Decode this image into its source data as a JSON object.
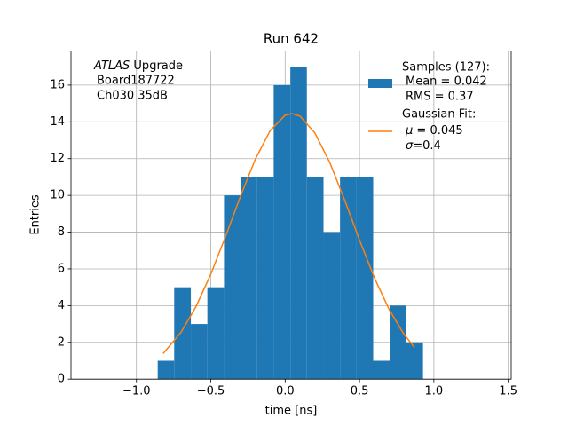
{
  "chart_data": {
    "type": "histogram",
    "title": "Run 642",
    "xlabel": "time [ns]",
    "ylabel": "Entries",
    "annotation": {
      "italic": "ATLAS",
      "lines": [
        "Upgrade",
        "Board187722",
        "Ch030 35dB"
      ]
    },
    "bins": [
      -0.857,
      -0.746,
      -0.634,
      -0.523,
      -0.411,
      -0.3,
      -0.188,
      -0.077,
      0.035,
      0.146,
      0.258,
      0.369,
      0.481,
      0.592,
      0.704,
      0.815,
      0.927
    ],
    "series": [
      {
        "name": [
          "Samples (127):",
          "Mean = 0.042",
          "RMS = 0.37"
        ],
        "color": "#1f77b4",
        "values": [
          1,
          5,
          3,
          5,
          10,
          11,
          11,
          16,
          17,
          11,
          8,
          11,
          11,
          1,
          4,
          2
        ]
      }
    ],
    "fit": {
      "name": [
        "Gaussian Fit:",
        "μ",
        "= 0.045",
        "σ",
        "=0.4"
      ],
      "color": "#ff7f0e",
      "x": [
        -0.82,
        -0.7,
        -0.6,
        -0.5,
        -0.4,
        -0.3,
        -0.2,
        -0.1,
        0,
        0.045,
        0.1,
        0.2,
        0.3,
        0.4,
        0.5,
        0.6,
        0.7,
        0.8,
        0.87
      ],
      "y": [
        1.39,
        2.55,
        3.94,
        5.71,
        7.78,
        9.96,
        11.98,
        13.53,
        14.36,
        14.45,
        14.31,
        13.4,
        11.79,
        9.75,
        7.57,
        5.52,
        3.78,
        2.43,
        1.72
      ]
    },
    "xlim": [
      -1.44,
      1.52
    ],
    "ylim": [
      0,
      17.85
    ],
    "xticks": [
      {
        "value": -1.0,
        "label": "−1.0"
      },
      {
        "value": -0.5,
        "label": "−0.5"
      },
      {
        "value": 0,
        "label": "0.0"
      },
      {
        "value": 0.5,
        "label": "0.5"
      },
      {
        "value": 1.0,
        "label": "1.0"
      },
      {
        "value": 1.5,
        "label": "1.5"
      }
    ],
    "yticks": [
      0,
      2,
      4,
      6,
      8,
      10,
      12,
      14,
      16
    ],
    "grid": true,
    "legend": "upper right"
  }
}
